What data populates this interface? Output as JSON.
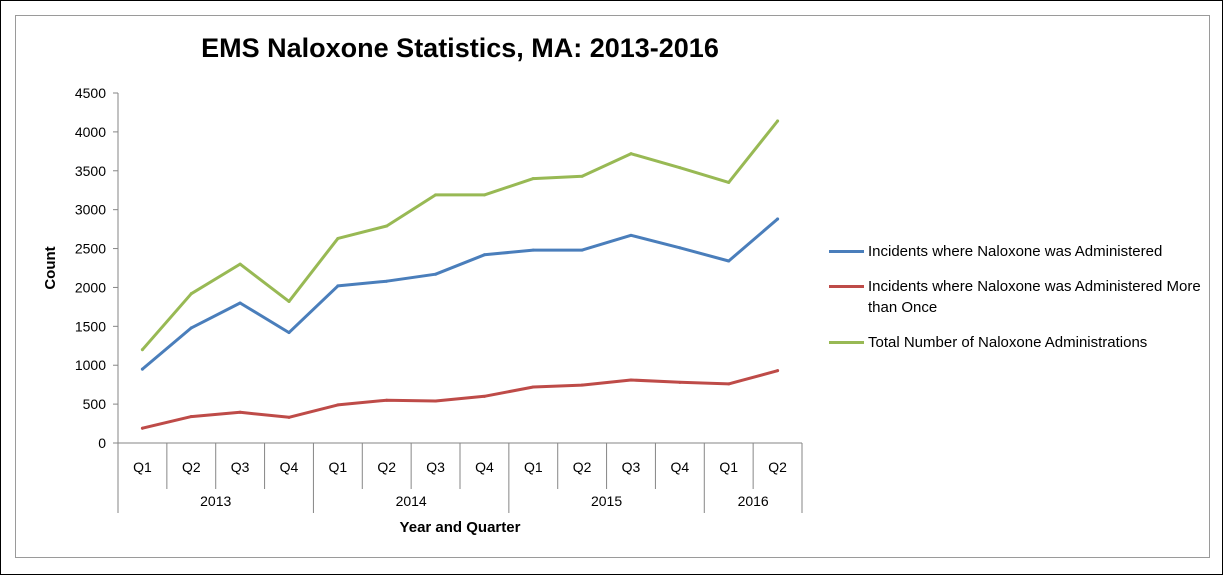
{
  "chart_data": {
    "type": "line",
    "title": "EMS Naloxone Statistics, MA: 2013-2016",
    "xlabel": "Year and Quarter",
    "ylabel": "Count",
    "ylim": [
      0,
      4500
    ],
    "yticks": [
      "0",
      "500",
      "1000",
      "1500",
      "2000",
      "2500",
      "3000",
      "3500",
      "4000",
      "4500"
    ],
    "categories": [
      "Q1",
      "Q2",
      "Q3",
      "Q4",
      "Q1",
      "Q2",
      "Q3",
      "Q4",
      "Q1",
      "Q2",
      "Q3",
      "Q4",
      "Q1",
      "Q2"
    ],
    "groups": [
      {
        "label": "2013",
        "count": 4
      },
      {
        "label": "2014",
        "count": 4
      },
      {
        "label": "2015",
        "count": 4
      },
      {
        "label": "2016",
        "count": 2
      }
    ],
    "legend_position": "right",
    "grid": false,
    "series": [
      {
        "name": "Incidents where Naloxone was Administered",
        "color": "#4a7ebb",
        "values": [
          950,
          1480,
          1800,
          1420,
          2020,
          2080,
          2170,
          2420,
          2480,
          2480,
          2670,
          2510,
          2340,
          2880
        ]
      },
      {
        "name": "Incidents where Naloxone was Administered More than Once",
        "color": "#be4b48",
        "values": [
          190,
          340,
          395,
          330,
          490,
          550,
          540,
          600,
          720,
          745,
          810,
          780,
          760,
          930
        ]
      },
      {
        "name": "Total Number of Naloxone Administrations",
        "color": "#98b954",
        "values": [
          1200,
          1920,
          2300,
          1820,
          2630,
          2790,
          3190,
          3190,
          3400,
          3430,
          3720,
          3540,
          3350,
          4140
        ]
      }
    ]
  }
}
